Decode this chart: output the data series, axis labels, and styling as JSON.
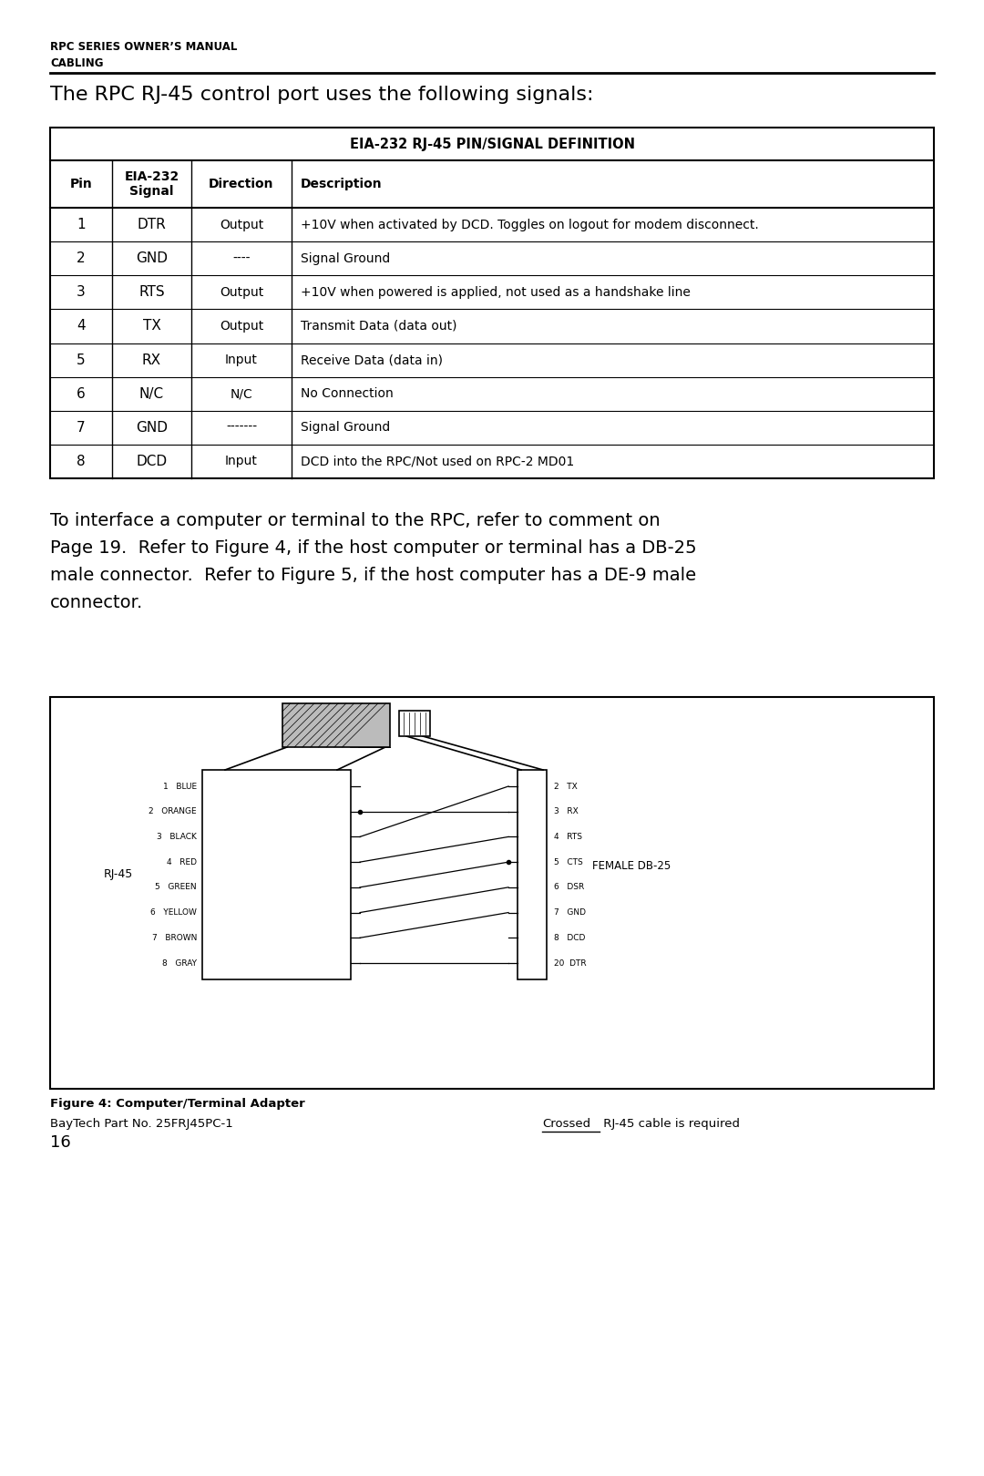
{
  "page_bg": "#ffffff",
  "header_line1": "RPC SERIES OWNER’S MANUAL",
  "header_line2": "CABLING",
  "section_title": "The RPC RJ-45 control port uses the following signals:",
  "table_title": "EIA-232 RJ-45 PIN/SIGNAL DEFINITION",
  "col_headers": [
    "Pin",
    "EIA-232\nSignal",
    "Direction",
    "Description"
  ],
  "table_data": [
    [
      "1",
      "DTR",
      "Output",
      "+10V when activated by DCD. Toggles on logout for modem disconnect."
    ],
    [
      "2",
      "GND",
      "----",
      "Signal Ground"
    ],
    [
      "3",
      "RTS",
      "Output",
      "+10V when powered is applied, not used as a handshake line"
    ],
    [
      "4",
      "TX",
      "Output",
      "Transmit Data (data out)"
    ],
    [
      "5",
      "RX",
      "Input",
      "Receive Data (data in)"
    ],
    [
      "6",
      "N/C",
      "N/C",
      "No Connection"
    ],
    [
      "7",
      "GND",
      "-------",
      "Signal Ground"
    ],
    [
      "8",
      "DCD",
      "Input",
      "DCD into the RPC/Not used on RPC-2 MD01"
    ]
  ],
  "body_text_lines": [
    "To interface a computer or terminal to the RPC, refer to comment on",
    "Page 19.  Refer to Figure 4, if the host computer or terminal has a DB-25",
    "male connector.  Refer to Figure 5, if the host computer has a DE-9 male",
    "connector."
  ],
  "fig_caption_bold": "Figure 4: Computer/Terminal Adapter",
  "fig_caption_normal": "BayTech Part No. 25FRJ45PC-1",
  "fig_caption_right_underlined": "Crossed",
  "fig_caption_right_rest": " RJ-45 cable is required",
  "rj45_label": "RJ-45",
  "db25_label": "FEMALE DB-25",
  "rj45_pins": [
    "1   BLUE",
    "2   ORANGE",
    "3   BLACK",
    "4   RED",
    "5   GREEN",
    "6   YELLOW",
    "7   BROWN",
    "8   GRAY"
  ],
  "db25_pins": [
    "2   TX",
    "3   RX",
    "4   RTS",
    "5   CTS",
    "6   DSR",
    "7   GND",
    "8   DCD",
    "20  DTR"
  ],
  "page_number": "16"
}
